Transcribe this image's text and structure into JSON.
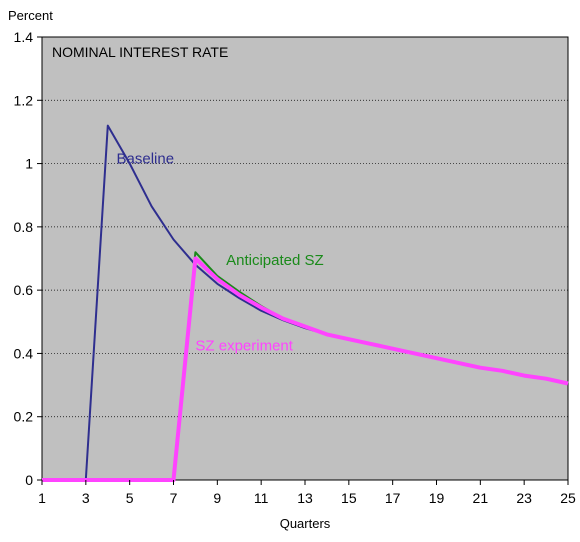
{
  "chart_data": {
    "type": "line",
    "title": "NOMINAL INTEREST RATE",
    "ylabel": "Percent",
    "xlabel": "Quarters",
    "xlim": [
      1,
      25
    ],
    "ylim": [
      0,
      1.4
    ],
    "x_ticks": [
      "1",
      "3",
      "5",
      "7",
      "9",
      "11",
      "13",
      "15",
      "17",
      "19",
      "21",
      "23",
      "25"
    ],
    "y_ticks": [
      "0",
      "0.2",
      "0.4",
      "0.6",
      "0.8",
      "1",
      "1.2",
      "1.4"
    ],
    "grid": true,
    "series": [
      {
        "name": "Baseline",
        "color": "#2e2e8f",
        "stroke_width": 2,
        "x": [
          1,
          2,
          3,
          4,
          5,
          6,
          7,
          8,
          9,
          10,
          11,
          12,
          13,
          14,
          15,
          16,
          17,
          18,
          19,
          20,
          21,
          22,
          23,
          24,
          25
        ],
        "y": [
          0,
          0,
          0,
          1.12,
          1.0,
          0.865,
          0.76,
          0.68,
          0.62,
          0.575,
          0.535,
          0.505,
          0.48,
          0.46,
          0.445,
          0.43,
          0.415,
          0.4,
          0.385,
          0.37,
          0.355,
          0.345,
          0.33,
          0.32,
          0.305
        ]
      },
      {
        "name": "Anticipated SZ",
        "color": "#1a8a1a",
        "stroke_width": 2,
        "x": [
          1,
          2,
          3,
          4,
          5,
          6,
          7,
          8,
          9,
          10,
          11,
          12,
          13,
          14,
          15,
          16,
          17,
          18,
          19,
          20,
          21,
          22,
          23,
          24,
          25
        ],
        "y": [
          0,
          0,
          0,
          0,
          0,
          0,
          0,
          0.72,
          0.645,
          0.595,
          0.55,
          0.51,
          0.485,
          0.46,
          0.445,
          0.43,
          0.415,
          0.4,
          0.385,
          0.37,
          0.355,
          0.345,
          0.33,
          0.32,
          0.305
        ]
      },
      {
        "name": "SZ experiment",
        "color": "#ff44ff",
        "stroke_width": 4,
        "x": [
          1,
          2,
          3,
          4,
          5,
          6,
          7,
          8,
          9,
          10,
          11,
          12,
          13,
          14,
          15,
          16,
          17,
          18,
          19,
          20,
          21,
          22,
          23,
          24,
          25
        ],
        "y": [
          0,
          0,
          0,
          0,
          0,
          0,
          0,
          0.7,
          0.635,
          0.585,
          0.545,
          0.51,
          0.485,
          0.46,
          0.445,
          0.43,
          0.415,
          0.4,
          0.385,
          0.37,
          0.355,
          0.345,
          0.33,
          0.32,
          0.305
        ]
      }
    ],
    "annotations": [
      {
        "text": "Baseline",
        "series": "Baseline",
        "x": 4.4,
        "y": 1.0
      },
      {
        "text": "Anticipated SZ",
        "series": "Anticipated SZ",
        "x": 9.4,
        "y": 0.68
      },
      {
        "text": "SZ experiment",
        "series": "SZ experiment",
        "x": 8.0,
        "y": 0.41
      }
    ]
  }
}
